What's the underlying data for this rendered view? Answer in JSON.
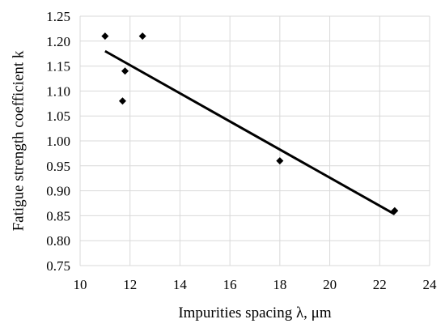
{
  "chart_data": {
    "type": "scatter",
    "xlabel": "Impurities spacing λ, μm",
    "ylabel": "Fatigue strength coefficient k",
    "xlim": [
      10,
      24
    ],
    "ylim": [
      0.75,
      1.25
    ],
    "x_ticks": [
      10,
      12,
      14,
      16,
      18,
      20,
      22,
      24
    ],
    "y_ticks": [
      0.75,
      0.8,
      0.85,
      0.9,
      0.95,
      1.0,
      1.05,
      1.1,
      1.15,
      1.2,
      1.25
    ],
    "grid": true,
    "series": [
      {
        "marker": "diamond",
        "color": "#000000",
        "points": [
          {
            "x": 11.0,
            "y": 1.21
          },
          {
            "x": 12.5,
            "y": 1.21
          },
          {
            "x": 11.8,
            "y": 1.14
          },
          {
            "x": 11.7,
            "y": 1.08
          },
          {
            "x": 18.0,
            "y": 0.96
          },
          {
            "x": 22.6,
            "y": 0.86
          }
        ]
      }
    ],
    "trendline": {
      "type": "linear",
      "color": "#000000",
      "x": [
        11.0,
        22.6
      ],
      "y": [
        1.18,
        0.853
      ]
    }
  }
}
